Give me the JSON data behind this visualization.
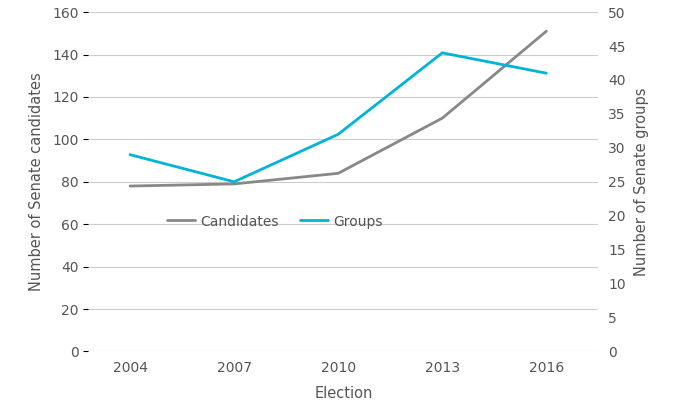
{
  "years": [
    2004,
    2007,
    2010,
    2013,
    2016
  ],
  "candidates": [
    78,
    79,
    84,
    110,
    151
  ],
  "groups": [
    29,
    25,
    32,
    44,
    41
  ],
  "candidates_color": "#888888",
  "groups_color": "#00b4d8",
  "left_ylim": [
    0,
    160
  ],
  "right_ylim": [
    0,
    50
  ],
  "left_yticks": [
    0,
    20,
    40,
    60,
    80,
    100,
    120,
    140,
    160
  ],
  "right_yticks": [
    0,
    5,
    10,
    15,
    20,
    25,
    30,
    35,
    40,
    45,
    50
  ],
  "xlabel": "Election",
  "left_ylabel": "Number of Senate candidates",
  "right_ylabel": "Number of Senate groups",
  "legend_candidates": "Candidates",
  "legend_groups": "Groups",
  "line_width": 2.0,
  "background_color": "#ffffff",
  "grid_color": "#cccccc",
  "tick_label_fontsize": 10,
  "axis_label_fontsize": 10.5,
  "text_color": "#555555"
}
